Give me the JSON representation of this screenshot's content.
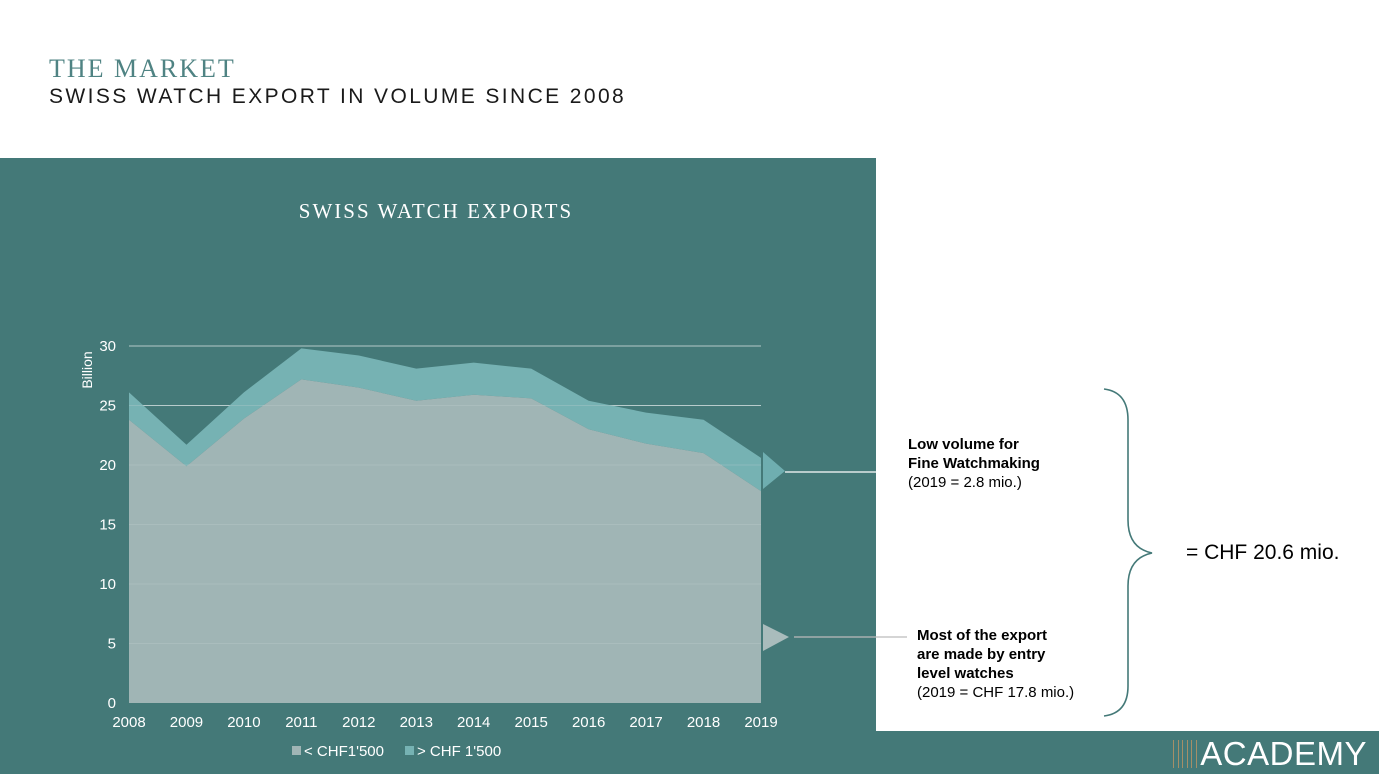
{
  "header": {
    "kicker": "THE MARKET",
    "title": "SWISS WATCH EXPORT IN VOLUME SINCE 2008"
  },
  "chart_data": {
    "type": "area",
    "title": "SWISS WATCH EXPORTS",
    "ylabel": "Billion",
    "xlabel": "",
    "ylim": [
      0,
      30
    ],
    "yticks": [
      0,
      5,
      10,
      15,
      20,
      25,
      30
    ],
    "categories": [
      "2008",
      "2009",
      "2010",
      "2011",
      "2012",
      "2013",
      "2014",
      "2015",
      "2016",
      "2017",
      "2018",
      "2019"
    ],
    "stacked": true,
    "series": [
      {
        "name": "< CHF1'500",
        "color": "#a0b5b5",
        "values": [
          23.8,
          19.9,
          23.9,
          27.2,
          26.5,
          25.4,
          25.9,
          25.6,
          23.0,
          21.8,
          21.0,
          17.8
        ]
      },
      {
        "name": "> CHF 1'500",
        "color": "#76b2b3",
        "values": [
          2.3,
          1.8,
          2.2,
          2.6,
          2.7,
          2.7,
          2.7,
          2.5,
          2.4,
          2.6,
          2.8,
          2.8
        ]
      }
    ],
    "legend": [
      "< CHF1'500",
      "> CHF 1'500"
    ],
    "legend_position": "bottom",
    "grid": true
  },
  "annotations": {
    "fine": {
      "title_line1": "Low volume for",
      "title_line2": "Fine Watchmaking",
      "sub": "(2019 = 2.8 mio.)"
    },
    "entry": {
      "title_line1": "Most of the export",
      "title_line2": "are made by entry",
      "title_line3": "level watches",
      "sub": "(2019 = CHF 17.8 mio.)"
    },
    "total": "= CHF 20.6 mio."
  },
  "brand": {
    "text": "ACADEMY"
  },
  "colors": {
    "panel": "#447978",
    "low_series": "#a0b5b5",
    "high_series": "#76b2b3",
    "kicker": "#4f8383"
  }
}
